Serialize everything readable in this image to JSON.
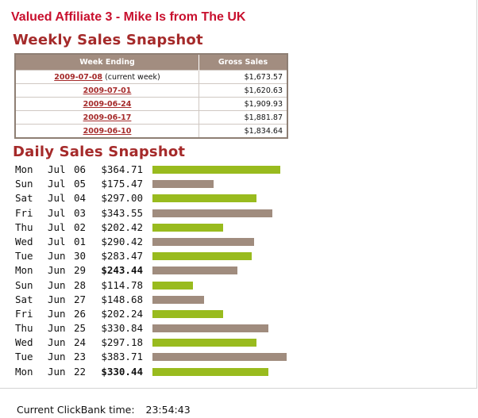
{
  "header": {
    "affiliate_title": "Valued Affiliate 3 - Mike Is from The UK",
    "weekly_title": "Weekly Sales Snapshot",
    "daily_title": "Daily Sales Snapshot"
  },
  "weekly": {
    "columns": [
      "Week Ending",
      "Gross Sales"
    ],
    "rows": [
      {
        "week": "2009-07-08",
        "note": "(current week)",
        "gross": "$1,673.57"
      },
      {
        "week": "2009-07-01",
        "note": "",
        "gross": "$1,620.63"
      },
      {
        "week": "2009-06-24",
        "note": "",
        "gross": "$1,909.93"
      },
      {
        "week": "2009-06-17",
        "note": "",
        "gross": "$1,881.87"
      },
      {
        "week": "2009-06-10",
        "note": "",
        "gross": "$1,834.64"
      }
    ]
  },
  "daily": {
    "max_value": 383.71,
    "colors": {
      "green": "#99bb1e",
      "brown": "#a08c7e"
    },
    "rows": [
      {
        "dow": "Mon",
        "mon": "Jul",
        "day": "06",
        "amount": "$364.71",
        "value": 364.71,
        "bold": false,
        "color": "green"
      },
      {
        "dow": "Sun",
        "mon": "Jul",
        "day": "05",
        "amount": "$175.47",
        "value": 175.47,
        "bold": false,
        "color": "brown"
      },
      {
        "dow": "Sat",
        "mon": "Jul",
        "day": "04",
        "amount": "$297.00",
        "value": 297.0,
        "bold": false,
        "color": "green"
      },
      {
        "dow": "Fri",
        "mon": "Jul",
        "day": "03",
        "amount": "$343.55",
        "value": 343.55,
        "bold": false,
        "color": "brown"
      },
      {
        "dow": "Thu",
        "mon": "Jul",
        "day": "02",
        "amount": "$202.42",
        "value": 202.42,
        "bold": false,
        "color": "green"
      },
      {
        "dow": "Wed",
        "mon": "Jul",
        "day": "01",
        "amount": "$290.42",
        "value": 290.42,
        "bold": false,
        "color": "brown"
      },
      {
        "dow": "Tue",
        "mon": "Jun",
        "day": "30",
        "amount": "$283.47",
        "value": 283.47,
        "bold": false,
        "color": "green"
      },
      {
        "dow": "Mon",
        "mon": "Jun",
        "day": "29",
        "amount": "$243.44",
        "value": 243.44,
        "bold": true,
        "color": "brown"
      },
      {
        "dow": "Sun",
        "mon": "Jun",
        "day": "28",
        "amount": "$114.78",
        "value": 114.78,
        "bold": false,
        "color": "green"
      },
      {
        "dow": "Sat",
        "mon": "Jun",
        "day": "27",
        "amount": "$148.68",
        "value": 148.68,
        "bold": false,
        "color": "brown"
      },
      {
        "dow": "Fri",
        "mon": "Jun",
        "day": "26",
        "amount": "$202.24",
        "value": 202.24,
        "bold": false,
        "color": "green"
      },
      {
        "dow": "Thu",
        "mon": "Jun",
        "day": "25",
        "amount": "$330.84",
        "value": 330.84,
        "bold": false,
        "color": "brown"
      },
      {
        "dow": "Wed",
        "mon": "Jun",
        "day": "24",
        "amount": "$297.18",
        "value": 297.18,
        "bold": false,
        "color": "green"
      },
      {
        "dow": "Tue",
        "mon": "Jun",
        "day": "23",
        "amount": "$383.71",
        "value": 383.71,
        "bold": false,
        "color": "brown"
      },
      {
        "dow": "Mon",
        "mon": "Jun",
        "day": "22",
        "amount": "$330.44",
        "value": 330.44,
        "bold": true,
        "color": "green"
      }
    ]
  },
  "footer": {
    "label": "Current ClickBank time:",
    "time": "23:54:43"
  }
}
